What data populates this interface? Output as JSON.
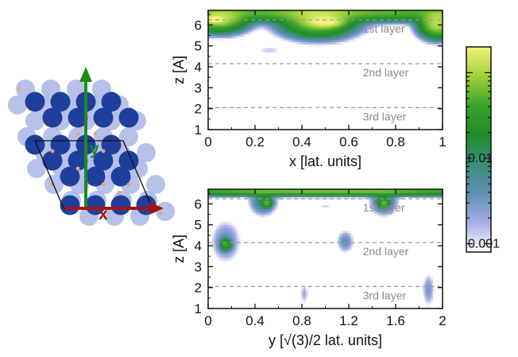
{
  "colormap": {
    "stops": [
      "#ffffff",
      "#a7aee8",
      "#5f8fb4",
      "#3b8f77",
      "#1f8b2a",
      "#3aa32c",
      "#9ed23a",
      "#f2f278"
    ],
    "frame": "#111111",
    "grid_line": "#9a9a9a",
    "axis_color": "#111111"
  },
  "colorbar": {
    "scale": "log",
    "range": [
      0.0008,
      0.2
    ],
    "tick_labels": [
      "0.01",
      "0.001"
    ],
    "tick_values": [
      0.01,
      0.001
    ]
  },
  "lattice_inset": {
    "x_axis_label": "x",
    "y_axis_label": "y",
    "x_arrow_color": "#a31414",
    "y_arrow_color": "#1f8a1f",
    "dark_atom_color": "#1f3f9e",
    "light_atom_color": "#a9b6e6"
  },
  "chart_data": [
    {
      "type": "heatmap",
      "xlabel": "x [lat. units]",
      "ylabel": "z [A]",
      "xlim": [
        0,
        1
      ],
      "ylim": [
        1,
        6.7
      ],
      "x_ticks": [
        "0",
        "0.2",
        "0.4",
        "0.6",
        "0.8",
        "1"
      ],
      "x_tick_values": [
        0,
        0.2,
        0.4,
        0.6,
        0.8,
        1
      ],
      "y_ticks": [
        "1",
        "2",
        "3",
        "4",
        "5",
        "6"
      ],
      "y_tick_values": [
        1,
        2,
        3,
        4,
        5,
        6
      ],
      "layer_lines": [
        {
          "z": 6.25,
          "label": "1st layer"
        },
        {
          "z": 4.15,
          "label": "2nd layer"
        },
        {
          "z": 2.05,
          "label": "3rd layer"
        }
      ],
      "label_x": 0.66,
      "density_blobs": [
        {
          "x": 0.5,
          "z": 6.6,
          "sx": 0.5,
          "sz": 0.22,
          "v": 0.06
        },
        {
          "x": 0.47,
          "z": 6.25,
          "sx": 0.08,
          "sz": 0.4,
          "v": 0.1
        },
        {
          "x": 0.5,
          "z": 6.15,
          "sx": 0.04,
          "sz": 0.14,
          "v": 0.18
        },
        {
          "x": 0.05,
          "z": 6.3,
          "sx": 0.06,
          "sz": 0.32,
          "v": 0.1
        },
        {
          "x": 0.03,
          "z": 6.25,
          "sx": 0.025,
          "sz": 0.1,
          "v": 0.18
        },
        {
          "x": 0.98,
          "z": 6.1,
          "sx": 0.04,
          "sz": 0.35,
          "v": 0.12
        },
        {
          "x": 0.26,
          "z": 4.8,
          "sx": 0.04,
          "sz": 0.08,
          "v": 0.0015
        }
      ]
    },
    {
      "type": "heatmap",
      "xlabel": "y [√(3)/2 lat. units]",
      "ylabel": "z [A]",
      "xlim": [
        0,
        2
      ],
      "ylim": [
        1,
        6.7
      ],
      "x_ticks": [
        "0",
        "0.4",
        "0.8",
        "1.2",
        "1.6",
        "2"
      ],
      "x_tick_values": [
        0,
        0.4,
        0.8,
        1.2,
        1.6,
        2
      ],
      "y_ticks": [
        "1",
        "2",
        "3",
        "4",
        "5",
        "6"
      ],
      "y_tick_values": [
        1,
        2,
        3,
        4,
        5,
        6
      ],
      "layer_lines": [
        {
          "z": 6.25,
          "label": "1st layer"
        },
        {
          "z": 4.15,
          "label": "2nd layer"
        },
        {
          "z": 2.05,
          "label": "3rd layer"
        }
      ],
      "label_x": 1.32,
      "density_blobs": [
        {
          "x": 1.0,
          "z": 6.62,
          "sx": 1.0,
          "sz": 0.12,
          "v": 0.07
        },
        {
          "x": 0.47,
          "z": 6.15,
          "sx": 0.06,
          "sz": 0.35,
          "v": 0.01
        },
        {
          "x": 0.5,
          "z": 6.05,
          "sx": 0.025,
          "sz": 0.12,
          "v": 0.05
        },
        {
          "x": 1.5,
          "z": 6.15,
          "sx": 0.06,
          "sz": 0.35,
          "v": 0.01
        },
        {
          "x": 1.5,
          "z": 6.05,
          "sx": 0.025,
          "sz": 0.12,
          "v": 0.05
        },
        {
          "x": 1.0,
          "z": 5.9,
          "sx": 0.05,
          "sz": 0.08,
          "v": 0.0012
        },
        {
          "x": 0.15,
          "z": 4.2,
          "sx": 0.07,
          "sz": 0.55,
          "v": 0.004
        },
        {
          "x": 0.15,
          "z": 4.05,
          "sx": 0.025,
          "sz": 0.15,
          "v": 0.04
        },
        {
          "x": 1.17,
          "z": 4.2,
          "sx": 0.04,
          "sz": 0.3,
          "v": 0.004
        },
        {
          "x": 0.82,
          "z": 1.7,
          "sx": 0.02,
          "sz": 0.3,
          "v": 0.002
        },
        {
          "x": 1.88,
          "z": 1.9,
          "sx": 0.03,
          "sz": 0.45,
          "v": 0.003
        }
      ]
    }
  ]
}
